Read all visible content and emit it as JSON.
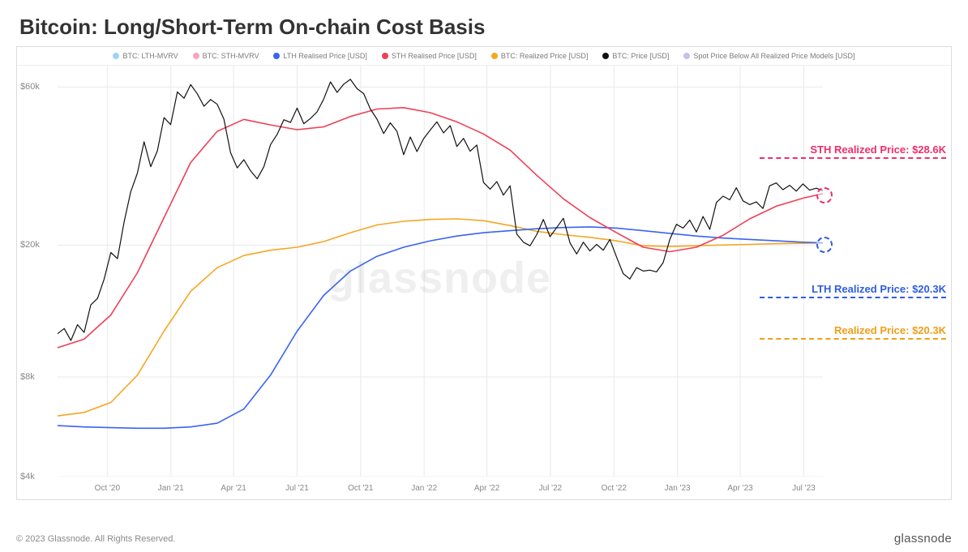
{
  "title": "Bitcoin: Long/Short-Term On-chain Cost Basis",
  "watermark": "glassnode",
  "copyright": "© 2023 Glassnode. All Rights Reserved.",
  "brand": "glassnode",
  "chart": {
    "type": "line",
    "yscale": "log",
    "ylim": [
      4000,
      70000
    ],
    "yticks": [
      {
        "v": 4000,
        "label": "$4k"
      },
      {
        "v": 8000,
        "label": "$8k"
      },
      {
        "v": 20000,
        "label": "$20k"
      },
      {
        "v": 60000,
        "label": "$60k"
      }
    ],
    "x_labels": [
      "Oct '20",
      "Jan '21",
      "Apr '21",
      "Jul '21",
      "Oct '21",
      "Jan '22",
      "Apr '22",
      "Jul '22",
      "Oct '22",
      "Jan '23",
      "Apr '23",
      "Jul '23"
    ],
    "x_label_positions_pct": [
      6.5,
      14.8,
      23.0,
      31.3,
      39.6,
      47.9,
      56.1,
      64.4,
      72.7,
      81.0,
      89.2,
      97.5
    ],
    "grid_color": "#e9e9e9",
    "background_color": "#ffffff",
    "line_width_main": 1.6,
    "line_width_thin": 1.3,
    "legend": [
      {
        "label": "BTC: LTH-MVRV",
        "color": "#9dd4f5"
      },
      {
        "label": "BTC: STH-MVRV",
        "color": "#f5a5c2"
      },
      {
        "label": "LTH Realised Price [USD]",
        "color": "#3a63f0"
      },
      {
        "label": "STH Realised Price [USD]",
        "color": "#ef4056"
      },
      {
        "label": "BTC: Realized Price [USD]",
        "color": "#f5a623"
      },
      {
        "label": "BTC: Price [USD]",
        "color": "#111111"
      },
      {
        "label": "Spot Price Below All Realized Price Models [USD]",
        "color": "#c8c0e8"
      }
    ],
    "series": {
      "price": {
        "color": "#111111",
        "width": 1.2,
        "data": [
          [
            0,
            10800
          ],
          [
            1,
            11200
          ],
          [
            2,
            10300
          ],
          [
            3,
            11500
          ],
          [
            4,
            10900
          ],
          [
            5,
            13200
          ],
          [
            6,
            13800
          ],
          [
            7,
            15800
          ],
          [
            8,
            19000
          ],
          [
            9,
            18200
          ],
          [
            10,
            23500
          ],
          [
            11,
            29000
          ],
          [
            12,
            33000
          ],
          [
            13,
            41000
          ],
          [
            14,
            34500
          ],
          [
            15,
            38500
          ],
          [
            16,
            48500
          ],
          [
            17,
            46200
          ],
          [
            18,
            58000
          ],
          [
            19,
            55500
          ],
          [
            20,
            61000
          ],
          [
            21,
            57200
          ],
          [
            22,
            52500
          ],
          [
            23,
            55000
          ],
          [
            24,
            53200
          ],
          [
            25,
            48000
          ],
          [
            26,
            38000
          ],
          [
            27,
            34200
          ],
          [
            28,
            36200
          ],
          [
            29,
            33500
          ],
          [
            30,
            31700
          ],
          [
            31,
            34500
          ],
          [
            32,
            40200
          ],
          [
            33,
            43200
          ],
          [
            34,
            47800
          ],
          [
            35,
            46900
          ],
          [
            36,
            51800
          ],
          [
            37,
            46500
          ],
          [
            38,
            48200
          ],
          [
            39,
            50500
          ],
          [
            40,
            55200
          ],
          [
            41,
            62200
          ],
          [
            42,
            57800
          ],
          [
            43,
            61200
          ],
          [
            44,
            63300
          ],
          [
            45,
            59300
          ],
          [
            46,
            57300
          ],
          [
            47,
            51500
          ],
          [
            48,
            48000
          ],
          [
            49,
            43400
          ],
          [
            50,
            46800
          ],
          [
            51,
            44100
          ],
          [
            52,
            37500
          ],
          [
            53,
            42400
          ],
          [
            54,
            38300
          ],
          [
            55,
            41900
          ],
          [
            56,
            44500
          ],
          [
            57,
            47100
          ],
          [
            58,
            43600
          ],
          [
            59,
            45900
          ],
          [
            60,
            39700
          ],
          [
            61,
            42000
          ],
          [
            62,
            38400
          ],
          [
            63,
            40100
          ],
          [
            64,
            30900
          ],
          [
            65,
            29500
          ],
          [
            66,
            31100
          ],
          [
            67,
            28300
          ],
          [
            68,
            30200
          ],
          [
            69,
            21600
          ],
          [
            70,
            20400
          ],
          [
            71,
            19900
          ],
          [
            72,
            21500
          ],
          [
            73,
            23900
          ],
          [
            74,
            21200
          ],
          [
            75,
            22600
          ],
          [
            76,
            24100
          ],
          [
            77,
            20300
          ],
          [
            78,
            18800
          ],
          [
            79,
            20400
          ],
          [
            80,
            19200
          ],
          [
            81,
            20100
          ],
          [
            82,
            19300
          ],
          [
            83,
            20800
          ],
          [
            84,
            18400
          ],
          [
            85,
            16400
          ],
          [
            86,
            15800
          ],
          [
            87,
            17100
          ],
          [
            88,
            16700
          ],
          [
            89,
            16800
          ],
          [
            90,
            16600
          ],
          [
            91,
            17700
          ],
          [
            92,
            20800
          ],
          [
            93,
            23100
          ],
          [
            94,
            22500
          ],
          [
            95,
            23800
          ],
          [
            96,
            21900
          ],
          [
            97,
            24400
          ],
          [
            98,
            22300
          ],
          [
            99,
            26900
          ],
          [
            100,
            28100
          ],
          [
            101,
            27400
          ],
          [
            102,
            29800
          ],
          [
            103,
            27200
          ],
          [
            104,
            26500
          ],
          [
            105,
            27000
          ],
          [
            106,
            25800
          ],
          [
            107,
            30200
          ],
          [
            108,
            30800
          ],
          [
            109,
            29400
          ],
          [
            110,
            30300
          ],
          [
            111,
            29100
          ],
          [
            112,
            30600
          ],
          [
            113,
            29300
          ],
          [
            114,
            29700
          ],
          [
            115,
            29200
          ]
        ]
      },
      "sth": {
        "color": "#ef4056",
        "width": 1.6,
        "data": [
          [
            0,
            9800
          ],
          [
            4,
            10400
          ],
          [
            8,
            12300
          ],
          [
            12,
            16500
          ],
          [
            16,
            24200
          ],
          [
            20,
            35500
          ],
          [
            24,
            44100
          ],
          [
            28,
            47900
          ],
          [
            32,
            46100
          ],
          [
            36,
            44600
          ],
          [
            40,
            45500
          ],
          [
            44,
            48900
          ],
          [
            48,
            51500
          ],
          [
            52,
            52000
          ],
          [
            56,
            50200
          ],
          [
            60,
            47100
          ],
          [
            64,
            43300
          ],
          [
            68,
            38700
          ],
          [
            72,
            32500
          ],
          [
            76,
            27600
          ],
          [
            80,
            24200
          ],
          [
            84,
            21800
          ],
          [
            88,
            19700
          ],
          [
            92,
            19100
          ],
          [
            96,
            19700
          ],
          [
            100,
            21400
          ],
          [
            104,
            24000
          ],
          [
            108,
            26200
          ],
          [
            112,
            27700
          ],
          [
            115,
            28600
          ]
        ]
      },
      "lth": {
        "color": "#3a63f0",
        "width": 1.6,
        "data": [
          [
            0,
            5700
          ],
          [
            4,
            5650
          ],
          [
            8,
            5620
          ],
          [
            12,
            5600
          ],
          [
            16,
            5600
          ],
          [
            20,
            5650
          ],
          [
            24,
            5800
          ],
          [
            28,
            6400
          ],
          [
            32,
            8100
          ],
          [
            36,
            11000
          ],
          [
            40,
            14100
          ],
          [
            44,
            16700
          ],
          [
            48,
            18500
          ],
          [
            52,
            19700
          ],
          [
            56,
            20600
          ],
          [
            60,
            21300
          ],
          [
            64,
            21800
          ],
          [
            68,
            22100
          ],
          [
            72,
            22400
          ],
          [
            76,
            22600
          ],
          [
            80,
            22700
          ],
          [
            84,
            22500
          ],
          [
            88,
            22100
          ],
          [
            92,
            21700
          ],
          [
            96,
            21300
          ],
          [
            100,
            21000
          ],
          [
            104,
            20800
          ],
          [
            108,
            20600
          ],
          [
            112,
            20400
          ],
          [
            115,
            20300
          ]
        ]
      },
      "realized": {
        "color": "#f5a623",
        "width": 1.6,
        "data": [
          [
            0,
            6100
          ],
          [
            4,
            6250
          ],
          [
            8,
            6700
          ],
          [
            12,
            8100
          ],
          [
            16,
            11000
          ],
          [
            20,
            14500
          ],
          [
            24,
            17100
          ],
          [
            28,
            18600
          ],
          [
            32,
            19300
          ],
          [
            36,
            19700
          ],
          [
            40,
            20500
          ],
          [
            44,
            21800
          ],
          [
            48,
            23000
          ],
          [
            52,
            23600
          ],
          [
            56,
            23900
          ],
          [
            60,
            24000
          ],
          [
            64,
            23700
          ],
          [
            68,
            22900
          ],
          [
            72,
            22000
          ],
          [
            76,
            21500
          ],
          [
            80,
            21100
          ],
          [
            84,
            20600
          ],
          [
            88,
            19900
          ],
          [
            92,
            19800
          ],
          [
            96,
            19900
          ],
          [
            100,
            20000
          ],
          [
            104,
            20100
          ],
          [
            108,
            20200
          ],
          [
            112,
            20250
          ],
          [
            115,
            20300
          ]
        ]
      }
    },
    "annotations": [
      {
        "text": "STH Realized Price: $28.6K",
        "color": "#ef2e6a",
        "top_pct": 19,
        "pill_y": 28600,
        "pill_color": "#ef2e6a"
      },
      {
        "text": "LTH Realized Price: $20.3K",
        "color": "#2f5de0",
        "top_pct": 53,
        "pill_y": 20300,
        "pill_color": "#2f5de0"
      },
      {
        "text": "Realized Price: $20.3K",
        "color": "#f19d1a",
        "top_pct": 63,
        "pill_y": null,
        "pill_color": "#f19d1a"
      }
    ]
  }
}
